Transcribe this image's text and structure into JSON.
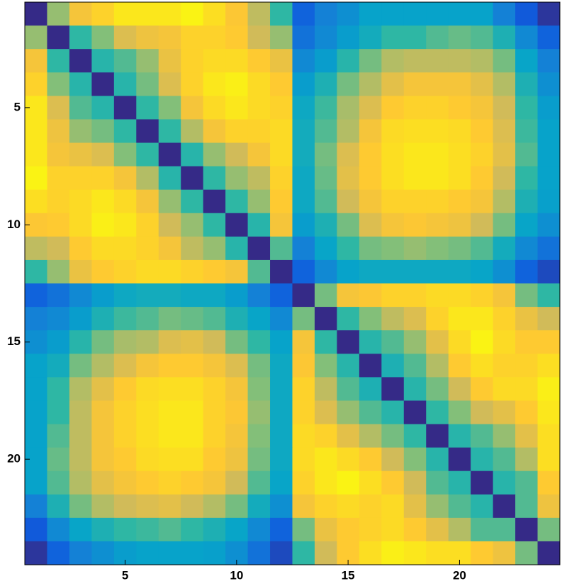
{
  "chart_data": {
    "type": "heatmap",
    "xlim": [
      0.5,
      24.5
    ],
    "ylim": [
      0.5,
      24.5
    ],
    "y_reversed": true,
    "xticks": [
      5,
      10,
      15,
      20
    ],
    "yticks": [
      5,
      10,
      15,
      20
    ],
    "clim": [
      0,
      1
    ],
    "colormap": [
      "#352a87",
      "#0f5cdd",
      "#1481d6",
      "#06a4ca",
      "#2eb7a4",
      "#87bf77",
      "#d1bb59",
      "#fec832",
      "#f9fb0e"
    ],
    "z": [
      [
        0,
        0.65,
        0.85,
        0.9,
        0.95,
        0.95,
        0.95,
        0.98,
        0.93,
        0.87,
        0.72,
        0.5,
        0.15,
        0.25,
        0.3,
        0.37,
        0.37,
        0.37,
        0.37,
        0.37,
        0.37,
        0.25,
        0.12,
        0.03
      ],
      [
        0.65,
        0,
        0.5,
        0.62,
        0.78,
        0.83,
        0.85,
        0.9,
        0.9,
        0.88,
        0.75,
        0.65,
        0.2,
        0.28,
        0.35,
        0.42,
        0.5,
        0.5,
        0.55,
        0.58,
        0.55,
        0.45,
        0.28,
        0.15
      ],
      [
        0.85,
        0.5,
        0,
        0.48,
        0.55,
        0.65,
        0.82,
        0.9,
        0.92,
        0.92,
        0.88,
        0.82,
        0.28,
        0.35,
        0.48,
        0.6,
        0.7,
        0.72,
        0.72,
        0.72,
        0.7,
        0.6,
        0.38,
        0.25
      ],
      [
        0.9,
        0.62,
        0.48,
        0,
        0.48,
        0.6,
        0.78,
        0.9,
        0.95,
        0.97,
        0.92,
        0.88,
        0.35,
        0.45,
        0.6,
        0.7,
        0.8,
        0.85,
        0.85,
        0.85,
        0.8,
        0.7,
        0.45,
        0.3
      ],
      [
        0.95,
        0.78,
        0.55,
        0.48,
        0,
        0.5,
        0.62,
        0.85,
        0.92,
        0.95,
        0.92,
        0.9,
        0.4,
        0.52,
        0.68,
        0.78,
        0.88,
        0.9,
        0.9,
        0.88,
        0.85,
        0.75,
        0.5,
        0.35
      ],
      [
        0.95,
        0.83,
        0.65,
        0.6,
        0.5,
        0,
        0.5,
        0.7,
        0.85,
        0.9,
        0.9,
        0.92,
        0.42,
        0.55,
        0.7,
        0.85,
        0.92,
        0.93,
        0.93,
        0.92,
        0.88,
        0.78,
        0.52,
        0.37
      ],
      [
        0.95,
        0.85,
        0.82,
        0.78,
        0.62,
        0.5,
        0,
        0.48,
        0.65,
        0.75,
        0.85,
        0.92,
        0.42,
        0.6,
        0.78,
        0.88,
        0.93,
        0.95,
        0.95,
        0.93,
        0.9,
        0.8,
        0.55,
        0.37
      ],
      [
        0.98,
        0.9,
        0.9,
        0.9,
        0.85,
        0.7,
        0.48,
        0,
        0.5,
        0.65,
        0.72,
        0.9,
        0.4,
        0.58,
        0.8,
        0.88,
        0.93,
        0.95,
        0.95,
        0.93,
        0.88,
        0.75,
        0.5,
        0.37
      ],
      [
        0.93,
        0.9,
        0.92,
        0.95,
        0.92,
        0.85,
        0.65,
        0.5,
        0,
        0.5,
        0.65,
        0.88,
        0.4,
        0.55,
        0.75,
        0.85,
        0.9,
        0.9,
        0.9,
        0.88,
        0.85,
        0.7,
        0.45,
        0.36
      ],
      [
        0.87,
        0.88,
        0.92,
        0.97,
        0.95,
        0.9,
        0.75,
        0.65,
        0.5,
        0,
        0.48,
        0.85,
        0.35,
        0.45,
        0.6,
        0.78,
        0.85,
        0.87,
        0.85,
        0.83,
        0.75,
        0.6,
        0.38,
        0.3
      ],
      [
        0.72,
        0.75,
        0.88,
        0.92,
        0.92,
        0.9,
        0.85,
        0.72,
        0.65,
        0.48,
        0,
        0.55,
        0.25,
        0.38,
        0.5,
        0.6,
        0.62,
        0.65,
        0.62,
        0.6,
        0.55,
        0.42,
        0.28,
        0.2
      ],
      [
        0.5,
        0.65,
        0.82,
        0.88,
        0.9,
        0.92,
        0.92,
        0.9,
        0.88,
        0.85,
        0.55,
        0,
        0.15,
        0.28,
        0.37,
        0.4,
        0.4,
        0.4,
        0.4,
        0.4,
        0.38,
        0.3,
        0.15,
        0.08
      ],
      [
        0.15,
        0.2,
        0.28,
        0.35,
        0.4,
        0.42,
        0.42,
        0.4,
        0.4,
        0.35,
        0.25,
        0.15,
        0,
        0.6,
        0.85,
        0.87,
        0.9,
        0.9,
        0.92,
        0.92,
        0.9,
        0.85,
        0.6,
        0.5
      ],
      [
        0.25,
        0.28,
        0.35,
        0.45,
        0.52,
        0.55,
        0.6,
        0.58,
        0.55,
        0.45,
        0.38,
        0.28,
        0.6,
        0,
        0.5,
        0.62,
        0.72,
        0.78,
        0.9,
        0.95,
        0.95,
        0.9,
        0.82,
        0.75
      ],
      [
        0.3,
        0.35,
        0.48,
        0.6,
        0.68,
        0.7,
        0.78,
        0.8,
        0.75,
        0.6,
        0.5,
        0.37,
        0.85,
        0.5,
        0,
        0.48,
        0.55,
        0.65,
        0.8,
        0.92,
        0.98,
        0.92,
        0.88,
        0.88
      ],
      [
        0.37,
        0.42,
        0.6,
        0.7,
        0.78,
        0.85,
        0.88,
        0.88,
        0.85,
        0.78,
        0.6,
        0.4,
        0.87,
        0.62,
        0.48,
        0,
        0.45,
        0.55,
        0.7,
        0.88,
        0.93,
        0.9,
        0.9,
        0.93
      ],
      [
        0.37,
        0.5,
        0.7,
        0.8,
        0.88,
        0.92,
        0.93,
        0.93,
        0.9,
        0.85,
        0.62,
        0.4,
        0.9,
        0.72,
        0.55,
        0.45,
        0,
        0.48,
        0.6,
        0.75,
        0.88,
        0.92,
        0.92,
        0.97
      ],
      [
        0.37,
        0.5,
        0.72,
        0.85,
        0.9,
        0.93,
        0.95,
        0.95,
        0.9,
        0.87,
        0.65,
        0.4,
        0.9,
        0.78,
        0.65,
        0.55,
        0.48,
        0,
        0.5,
        0.62,
        0.75,
        0.8,
        0.88,
        0.95
      ],
      [
        0.37,
        0.55,
        0.72,
        0.85,
        0.9,
        0.93,
        0.95,
        0.95,
        0.9,
        0.85,
        0.62,
        0.4,
        0.92,
        0.9,
        0.8,
        0.7,
        0.6,
        0.5,
        0,
        0.48,
        0.55,
        0.65,
        0.8,
        0.93
      ],
      [
        0.37,
        0.58,
        0.72,
        0.85,
        0.88,
        0.92,
        0.93,
        0.93,
        0.88,
        0.83,
        0.6,
        0.4,
        0.92,
        0.95,
        0.92,
        0.88,
        0.75,
        0.62,
        0.48,
        0,
        0.48,
        0.55,
        0.7,
        0.93
      ],
      [
        0.37,
        0.55,
        0.7,
        0.8,
        0.85,
        0.88,
        0.9,
        0.88,
        0.85,
        0.75,
        0.55,
        0.38,
        0.9,
        0.95,
        0.98,
        0.93,
        0.88,
        0.75,
        0.55,
        0.48,
        0,
        0.48,
        0.55,
        0.88
      ],
      [
        0.25,
        0.45,
        0.6,
        0.7,
        0.75,
        0.78,
        0.8,
        0.75,
        0.7,
        0.6,
        0.42,
        0.3,
        0.85,
        0.9,
        0.92,
        0.9,
        0.92,
        0.8,
        0.65,
        0.55,
        0.48,
        0,
        0.55,
        0.83
      ],
      [
        0.12,
        0.28,
        0.38,
        0.45,
        0.5,
        0.52,
        0.55,
        0.5,
        0.45,
        0.38,
        0.28,
        0.15,
        0.6,
        0.82,
        0.88,
        0.9,
        0.92,
        0.88,
        0.8,
        0.7,
        0.55,
        0.55,
        0,
        0.6
      ],
      [
        0.03,
        0.15,
        0.25,
        0.3,
        0.35,
        0.37,
        0.37,
        0.37,
        0.36,
        0.3,
        0.2,
        0.08,
        0.5,
        0.75,
        0.88,
        0.93,
        0.97,
        0.95,
        0.93,
        0.93,
        0.88,
        0.83,
        0.6,
        0
      ]
    ]
  }
}
